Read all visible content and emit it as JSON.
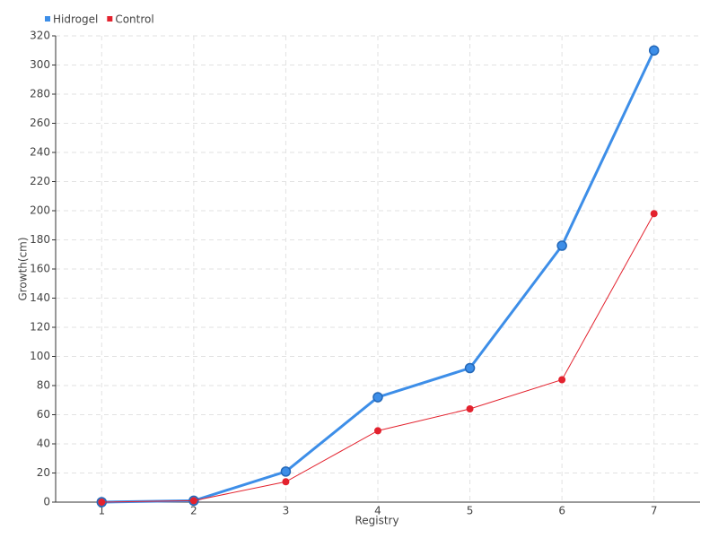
{
  "chart_data": {
    "type": "line",
    "x_label": "Registry",
    "y_label": "Growth(cm)",
    "categories": [
      "1",
      "2",
      "3",
      "4",
      "5",
      "6",
      "7"
    ],
    "series": [
      {
        "name": "Hidrogel",
        "color": "#3d8ee8",
        "values": [
          0,
          1,
          21,
          72,
          92,
          176,
          310
        ]
      },
      {
        "name": "Control",
        "color": "#e3222e",
        "values": [
          0,
          1,
          14,
          49,
          64,
          84,
          198
        ]
      }
    ],
    "ylim": [
      0,
      320
    ],
    "yticks": [
      0,
      20,
      40,
      60,
      80,
      100,
      120,
      140,
      160,
      180,
      200,
      220,
      240,
      260,
      280,
      300,
      320
    ],
    "grid": true,
    "legend": "top-left"
  }
}
